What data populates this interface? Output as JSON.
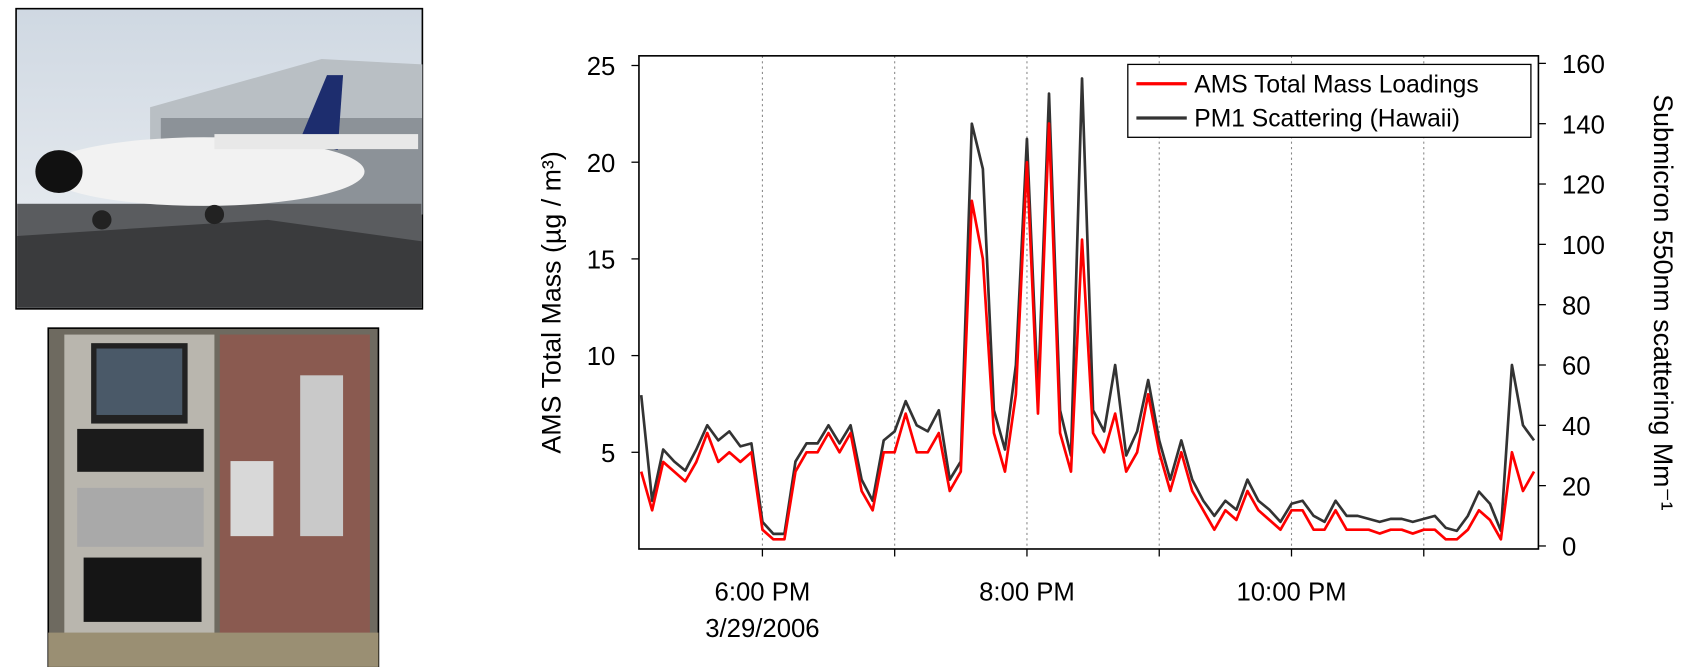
{
  "chart_data": {
    "type": "line",
    "ylabel": "AMS Total Mass (µg / m³)",
    "y2label": "Submicron 550nm scattering Mm⁻¹",
    "x_date_label": "3/29/2006",
    "legend": "upper right",
    "xlim": [
      "2006-03-29T17:04",
      "2006-03-29T23:52"
    ],
    "xticks": [
      {
        "value": "2006-03-29T18:00",
        "label": "6:00 PM"
      },
      {
        "value": "2006-03-29T20:00",
        "label": "8:00 PM"
      },
      {
        "value": "2006-03-29T22:00",
        "label": "10:00 PM"
      }
    ],
    "xgrid": [
      "2006-03-29T18:00",
      "2006-03-29T19:00",
      "2006-03-29T20:00",
      "2006-03-29T21:00",
      "2006-03-29T22:00",
      "2006-03-29T23:00"
    ],
    "ylim": [
      0,
      25.5
    ],
    "yticks": [
      5,
      10,
      15,
      20,
      25
    ],
    "y2lim": [
      -1,
      162.5
    ],
    "y2ticks": [
      0,
      20,
      40,
      60,
      80,
      100,
      120,
      140,
      160
    ],
    "x": [
      "2006-03-29T17:05",
      "2006-03-29T17:10",
      "2006-03-29T17:15",
      "2006-03-29T17:20",
      "2006-03-29T17:25",
      "2006-03-29T17:30",
      "2006-03-29T17:35",
      "2006-03-29T17:40",
      "2006-03-29T17:45",
      "2006-03-29T17:50",
      "2006-03-29T17:55",
      "2006-03-29T18:00",
      "2006-03-29T18:05",
      "2006-03-29T18:10",
      "2006-03-29T18:15",
      "2006-03-29T18:20",
      "2006-03-29T18:25",
      "2006-03-29T18:30",
      "2006-03-29T18:35",
      "2006-03-29T18:40",
      "2006-03-29T18:45",
      "2006-03-29T18:50",
      "2006-03-29T18:55",
      "2006-03-29T19:00",
      "2006-03-29T19:05",
      "2006-03-29T19:10",
      "2006-03-29T19:15",
      "2006-03-29T19:20",
      "2006-03-29T19:25",
      "2006-03-29T19:30",
      "2006-03-29T19:35",
      "2006-03-29T19:40",
      "2006-03-29T19:45",
      "2006-03-29T19:50",
      "2006-03-29T19:55",
      "2006-03-29T20:00",
      "2006-03-29T20:05",
      "2006-03-29T20:10",
      "2006-03-29T20:15",
      "2006-03-29T20:20",
      "2006-03-29T20:25",
      "2006-03-29T20:30",
      "2006-03-29T20:35",
      "2006-03-29T20:40",
      "2006-03-29T20:45",
      "2006-03-29T20:50",
      "2006-03-29T20:55",
      "2006-03-29T21:00",
      "2006-03-29T21:05",
      "2006-03-29T21:10",
      "2006-03-29T21:15",
      "2006-03-29T21:20",
      "2006-03-29T21:25",
      "2006-03-29T21:30",
      "2006-03-29T21:35",
      "2006-03-29T21:40",
      "2006-03-29T21:45",
      "2006-03-29T21:50",
      "2006-03-29T21:55",
      "2006-03-29T22:00",
      "2006-03-29T22:05",
      "2006-03-29T22:10",
      "2006-03-29T22:15",
      "2006-03-29T22:20",
      "2006-03-29T22:25",
      "2006-03-29T22:30",
      "2006-03-29T22:35",
      "2006-03-29T22:40",
      "2006-03-29T22:45",
      "2006-03-29T22:50",
      "2006-03-29T22:55",
      "2006-03-29T23:00",
      "2006-03-29T23:05",
      "2006-03-29T23:10",
      "2006-03-29T23:15",
      "2006-03-29T23:20",
      "2006-03-29T23:25",
      "2006-03-29T23:30",
      "2006-03-29T23:35",
      "2006-03-29T23:40",
      "2006-03-29T23:45",
      "2006-03-29T23:50"
    ],
    "series": [
      {
        "name": "AMS Total Mass Loadings",
        "color": "#ff0000",
        "axis": "y",
        "values": [
          4,
          2,
          4.5,
          4,
          3.5,
          4.5,
          6,
          4.5,
          5,
          4.5,
          5,
          1,
          0.5,
          0.5,
          4,
          5,
          5,
          6,
          5,
          6,
          3,
          2,
          5,
          5,
          7,
          5,
          5,
          6,
          3,
          4,
          18,
          15,
          6,
          4,
          8,
          20,
          7,
          22,
          6,
          4,
          16,
          6,
          5,
          7,
          4,
          5,
          8,
          5,
          3,
          5,
          3,
          2,
          1,
          2,
          1.5,
          3,
          2,
          1.5,
          1,
          2,
          2,
          1,
          1,
          2,
          1,
          1,
          1,
          0.8,
          1,
          1,
          0.8,
          1,
          1,
          0.5,
          0.5,
          1,
          2,
          1.5,
          0.5,
          5,
          3,
          4
        ]
      },
      {
        "name": "PM1 Scattering (Hawaii)",
        "color": "#333333",
        "axis": "y2",
        "values": [
          50,
          15,
          32,
          28,
          25,
          32,
          40,
          35,
          38,
          33,
          34,
          8,
          4,
          4,
          28,
          34,
          34,
          40,
          34,
          40,
          22,
          15,
          35,
          38,
          48,
          40,
          38,
          45,
          22,
          28,
          140,
          125,
          45,
          32,
          60,
          135,
          50,
          150,
          45,
          30,
          155,
          45,
          38,
          60,
          30,
          38,
          55,
          35,
          22,
          35,
          22,
          15,
          10,
          15,
          12,
          22,
          15,
          12,
          8,
          14,
          15,
          10,
          8,
          15,
          10,
          10,
          9,
          8,
          9,
          9,
          8,
          9,
          10,
          6,
          5,
          10,
          18,
          14,
          5,
          60,
          40,
          35
        ]
      }
    ]
  }
}
